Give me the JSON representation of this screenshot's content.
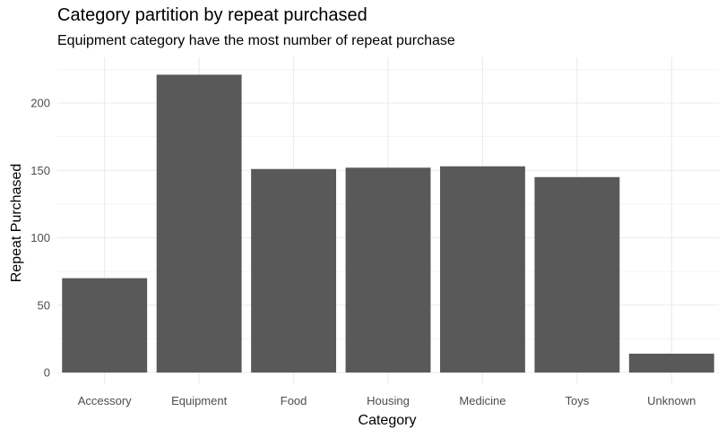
{
  "title": "Category partition by repeat purchased",
  "subtitle": "Equipment category have the most number of repeat purchase",
  "chart_data": {
    "type": "bar",
    "title": "Category partition by repeat purchased",
    "subtitle": "Equipment category have the most number of repeat purchase",
    "xlabel": "Category",
    "ylabel": "Repeat Purchased",
    "categories": [
      "Accessory",
      "Equipment",
      "Food",
      "Housing",
      "Medicine",
      "Toys",
      "Unknown"
    ],
    "values": [
      70,
      221,
      151,
      152,
      153,
      145,
      14
    ],
    "ylim": [
      0,
      232
    ],
    "yticks": [
      0,
      50,
      100,
      150,
      200
    ],
    "grid": true,
    "bar_color": "#595959",
    "grid_color": "#ebebeb"
  }
}
